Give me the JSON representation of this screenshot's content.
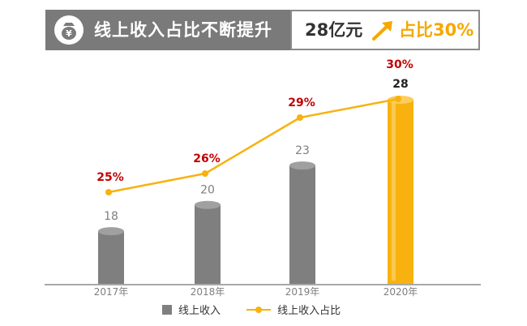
{
  "banner": {
    "title": "线上收入占比不断提升",
    "amount": "28亿元",
    "share": "占比30%",
    "icon": "money-bag-yen-icon",
    "arrow_icon": "arrow-up-right-icon"
  },
  "colors": {
    "banner_bg": "#7a7a7a",
    "bar": "#7f7f7f",
    "highlight_bar": "#f8b20f",
    "line": "#f8b20f",
    "percent_label": "#c00000"
  },
  "chart_data": {
    "type": "bar",
    "categories": [
      "2017年",
      "2018年",
      "2019年",
      "2020年"
    ],
    "series": [
      {
        "name": "线上收入",
        "type": "bar",
        "values": [
          18,
          20,
          23,
          28
        ],
        "labels": [
          "18",
          "20",
          "23",
          "28"
        ]
      },
      {
        "name": "线上收入占比",
        "type": "line",
        "values": [
          25,
          26,
          29,
          30
        ],
        "labels": [
          "25%",
          "26%",
          "29%",
          "30%"
        ]
      }
    ],
    "highlight_category": "2020年",
    "legend": {
      "position": "bottom"
    },
    "grid": false
  }
}
